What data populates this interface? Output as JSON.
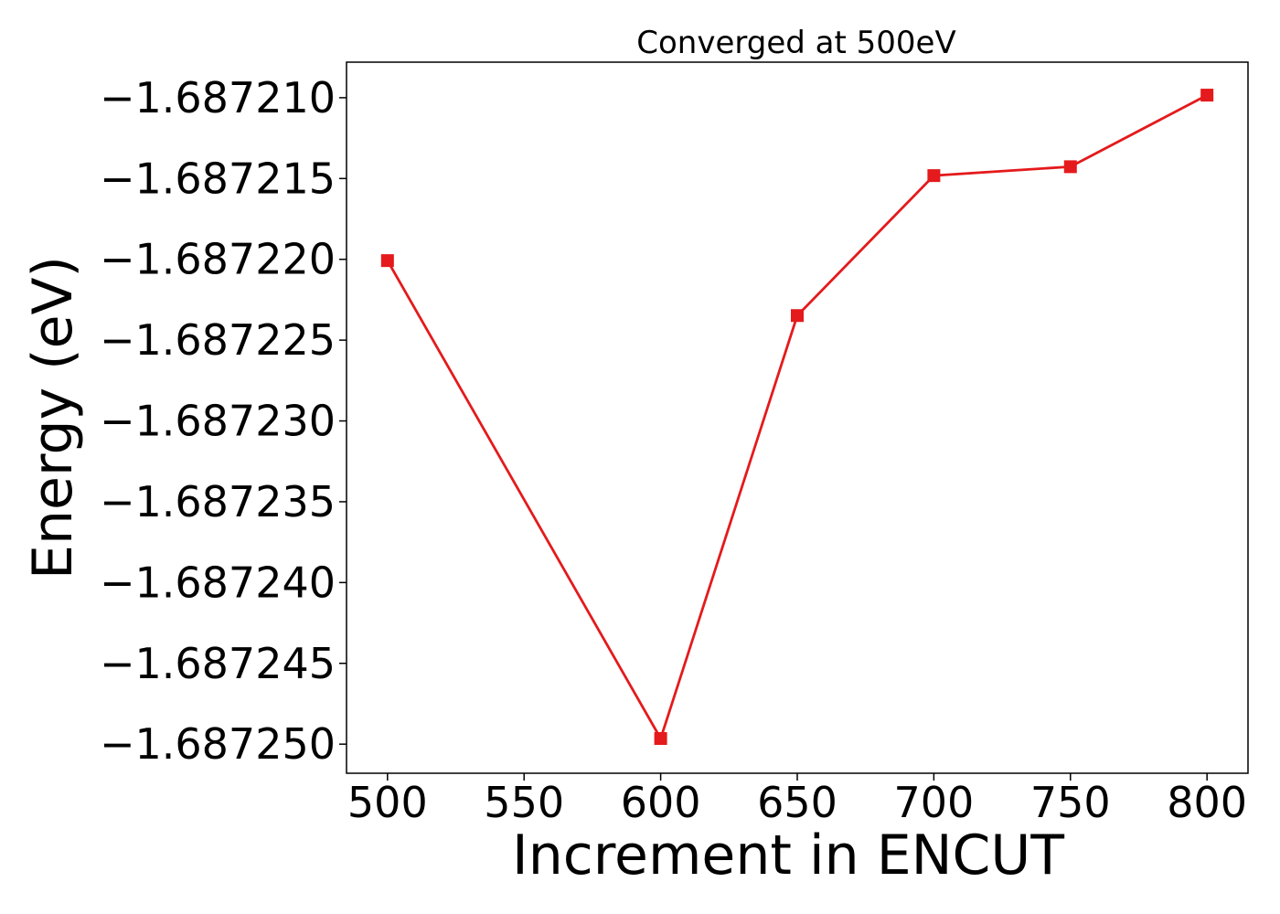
{
  "chart_data": {
    "type": "line",
    "title": "Converged at 500eV",
    "xlabel": "Increment in ENCUT",
    "ylabel": "Energy (eV)",
    "xlim": [
      485,
      815
    ],
    "ylim": [
      -1.6872518,
      -1.6872078
    ],
    "xticks": [
      500,
      550,
      600,
      650,
      700,
      750,
      800
    ],
    "xtick_labels": [
      "500",
      "550",
      "600",
      "650",
      "700",
      "750",
      "800"
    ],
    "yticks": [
      -1.68721,
      -1.687215,
      -1.68722,
      -1.687225,
      -1.68723,
      -1.687235,
      -1.68724,
      -1.687245,
      -1.68725
    ],
    "ytick_labels": [
      "−1.687210",
      "−1.687215",
      "−1.687220",
      "−1.687225",
      "−1.687230",
      "−1.687235",
      "−1.687240",
      "−1.687245",
      "−1.687250"
    ],
    "grid": false,
    "legend": false,
    "series": [
      {
        "color": "#e41a1c",
        "marker": "square",
        "x": [
          500,
          600,
          650,
          700,
          750,
          800
        ],
        "y": [
          -1.68722008,
          -1.68724965,
          -1.68722348,
          -1.68721482,
          -1.68721427,
          -1.68720984
        ]
      }
    ]
  }
}
